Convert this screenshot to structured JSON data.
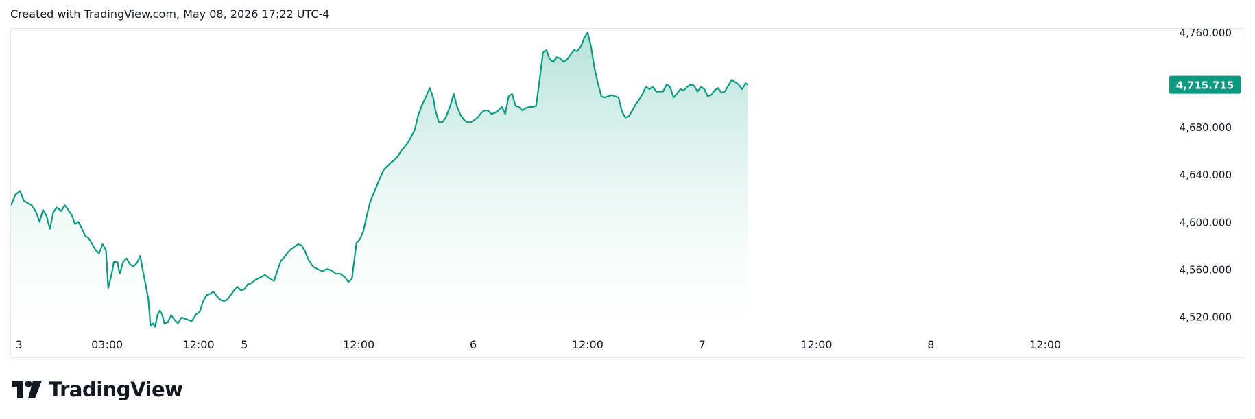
{
  "header": {
    "created_text": "Created with TradingView.com, May 08, 2026 17:22 UTC-4"
  },
  "brand": {
    "name": "TradingView"
  },
  "colors": {
    "line": "#089981",
    "fill_top": "#bfe6dd",
    "badge_bg": "#089981",
    "badge_text": "#ffffff",
    "axis_text": "#131722"
  },
  "chart_data": {
    "type": "area",
    "title": "",
    "xlabel": "",
    "ylabel": "",
    "ylim": [
      4508,
      4763
    ],
    "yticks": [
      4520,
      4560,
      4600,
      4640,
      4680,
      4720,
      4760
    ],
    "ytick_labels": [
      "4,520.000",
      "4,560.000",
      "4,600.000",
      "4,640.000",
      "4,680.000",
      "4,720.000",
      "4,760.000"
    ],
    "x_unit": "trading days (4 May 2026 = 0)",
    "xlim": [
      -1.02,
      4.03
    ],
    "xticks": [
      {
        "x": -1.0,
        "label": "3"
      },
      {
        "x": -0.6,
        "label": "03:00"
      },
      {
        "x": -0.2,
        "label": "12:00"
      },
      {
        "x": 0.0,
        "label": "5"
      },
      {
        "x": 0.5,
        "label": "12:00"
      },
      {
        "x": 1.0,
        "label": "6"
      },
      {
        "x": 1.5,
        "label": "12:00"
      },
      {
        "x": 2.0,
        "label": "7"
      },
      {
        "x": 2.5,
        "label": "12:00"
      },
      {
        "x": 3.0,
        "label": "8"
      },
      {
        "x": 3.5,
        "label": "12:00"
      }
    ],
    "last_value_label": "4,715.715",
    "grid": false,
    "series": [
      {
        "points": [
          [
            -1.02,
            4614
          ],
          [
            -1.0,
            4623
          ],
          [
            -0.98,
            4626
          ],
          [
            -0.965,
            4618
          ],
          [
            -0.95,
            4616
          ],
          [
            -0.93,
            4614
          ],
          [
            -0.91,
            4608
          ],
          [
            -0.895,
            4600
          ],
          [
            -0.88,
            4610
          ],
          [
            -0.865,
            4605
          ],
          [
            -0.85,
            4594
          ],
          [
            -0.835,
            4608
          ],
          [
            -0.82,
            4612
          ],
          [
            -0.8,
            4609
          ],
          [
            -0.785,
            4614
          ],
          [
            -0.77,
            4610
          ],
          [
            -0.755,
            4606
          ],
          [
            -0.74,
            4598
          ],
          [
            -0.725,
            4600
          ],
          [
            -0.71,
            4594
          ],
          [
            -0.695,
            4588
          ],
          [
            -0.68,
            4586
          ],
          [
            -0.665,
            4581
          ],
          [
            -0.65,
            4576
          ],
          [
            -0.635,
            4573
          ],
          [
            -0.62,
            4581
          ],
          [
            -0.605,
            4576
          ],
          [
            -0.595,
            4544
          ],
          [
            -0.58,
            4556
          ],
          [
            -0.57,
            4566
          ],
          [
            -0.555,
            4566
          ],
          [
            -0.545,
            4556
          ],
          [
            -0.53,
            4566
          ],
          [
            -0.515,
            4569
          ],
          [
            -0.5,
            4564
          ],
          [
            -0.485,
            4562
          ],
          [
            -0.47,
            4565
          ],
          [
            -0.455,
            4571
          ],
          [
            -0.445,
            4560
          ],
          [
            -0.43,
            4545
          ],
          [
            -0.42,
            4535
          ],
          [
            -0.41,
            4512
          ],
          [
            -0.4,
            4514
          ],
          [
            -0.39,
            4511
          ],
          [
            -0.38,
            4521
          ],
          [
            -0.37,
            4525
          ],
          [
            -0.36,
            4522
          ],
          [
            -0.35,
            4514
          ],
          [
            -0.335,
            4515
          ],
          [
            -0.32,
            4521
          ],
          [
            -0.305,
            4517
          ],
          [
            -0.29,
            4514
          ],
          [
            -0.275,
            4519
          ],
          [
            -0.26,
            4518
          ],
          [
            -0.245,
            4517
          ],
          [
            -0.23,
            4516
          ],
          [
            -0.21,
            4522
          ],
          [
            -0.195,
            4524
          ],
          [
            -0.18,
            4533
          ],
          [
            -0.165,
            4538
          ],
          [
            -0.15,
            4539
          ],
          [
            -0.135,
            4541
          ],
          [
            -0.12,
            4537
          ],
          [
            -0.105,
            4534
          ],
          [
            -0.09,
            4533
          ],
          [
            -0.075,
            4534
          ],
          [
            -0.06,
            4538
          ],
          [
            -0.045,
            4542
          ],
          [
            -0.03,
            4545
          ],
          [
            -0.015,
            4542
          ],
          [
            0.0,
            4543
          ],
          [
            0.015,
            4547
          ],
          [
            0.03,
            4548
          ],
          [
            0.05,
            4551
          ],
          [
            0.07,
            4553
          ],
          [
            0.09,
            4555
          ],
          [
            0.11,
            4552
          ],
          [
            0.13,
            4550
          ],
          [
            0.145,
            4559
          ],
          [
            0.16,
            4567
          ],
          [
            0.175,
            4570
          ],
          [
            0.19,
            4574
          ],
          [
            0.205,
            4577
          ],
          [
            0.22,
            4579
          ],
          [
            0.235,
            4581
          ],
          [
            0.25,
            4580
          ],
          [
            0.265,
            4575
          ],
          [
            0.28,
            4568
          ],
          [
            0.3,
            4562
          ],
          [
            0.32,
            4560
          ],
          [
            0.34,
            4558
          ],
          [
            0.36,
            4560
          ],
          [
            0.38,
            4559
          ],
          [
            0.4,
            4556
          ],
          [
            0.42,
            4556
          ],
          [
            0.44,
            4553
          ],
          [
            0.455,
            4549
          ],
          [
            0.47,
            4552
          ],
          [
            0.49,
            4582
          ],
          [
            0.505,
            4585
          ],
          [
            0.52,
            4592
          ],
          [
            0.535,
            4605
          ],
          [
            0.55,
            4617
          ],
          [
            0.565,
            4624
          ],
          [
            0.58,
            4631
          ],
          [
            0.595,
            4638
          ],
          [
            0.61,
            4644
          ],
          [
            0.625,
            4647
          ],
          [
            0.64,
            4650
          ],
          [
            0.655,
            4652
          ],
          [
            0.67,
            4655
          ],
          [
            0.685,
            4660
          ],
          [
            0.7,
            4663
          ],
          [
            0.715,
            4667
          ],
          [
            0.73,
            4672
          ],
          [
            0.745,
            4678
          ],
          [
            0.76,
            4690
          ],
          [
            0.775,
            4698
          ],
          [
            0.79,
            4704
          ],
          [
            0.81,
            4713
          ],
          [
            0.825,
            4705
          ],
          [
            0.835,
            4694
          ],
          [
            0.85,
            4684
          ],
          [
            0.865,
            4684
          ],
          [
            0.88,
            4688
          ],
          [
            0.9,
            4698
          ],
          [
            0.915,
            4708
          ],
          [
            0.93,
            4697
          ],
          [
            0.945,
            4690
          ],
          [
            0.96,
            4686
          ],
          [
            0.975,
            4684
          ],
          [
            0.99,
            4684
          ],
          [
            1.005,
            4686
          ],
          [
            1.02,
            4688
          ],
          [
            1.035,
            4692
          ],
          [
            1.05,
            4694
          ],
          [
            1.065,
            4694
          ],
          [
            1.08,
            4691
          ],
          [
            1.095,
            4692
          ],
          [
            1.11,
            4694
          ],
          [
            1.125,
            4697
          ],
          [
            1.14,
            4691
          ],
          [
            1.155,
            4706
          ],
          [
            1.17,
            4708
          ],
          [
            1.185,
            4698
          ],
          [
            1.2,
            4697
          ],
          [
            1.215,
            4694
          ],
          [
            1.23,
            4696
          ],
          [
            1.245,
            4697
          ],
          [
            1.26,
            4697
          ],
          [
            1.275,
            4698
          ],
          [
            1.29,
            4720
          ],
          [
            1.305,
            4743
          ],
          [
            1.32,
            4745
          ],
          [
            1.335,
            4737
          ],
          [
            1.35,
            4735
          ],
          [
            1.365,
            4739
          ],
          [
            1.38,
            4738
          ],
          [
            1.395,
            4735
          ],
          [
            1.41,
            4737
          ],
          [
            1.425,
            4741
          ],
          [
            1.44,
            4745
          ],
          [
            1.455,
            4744
          ],
          [
            1.47,
            4748
          ],
          [
            1.485,
            4755
          ],
          [
            1.5,
            4760
          ],
          [
            1.515,
            4748
          ],
          [
            1.53,
            4730
          ],
          [
            1.545,
            4717
          ],
          [
            1.56,
            4706
          ],
          [
            1.575,
            4705
          ],
          [
            1.59,
            4706
          ],
          [
            1.605,
            4707
          ],
          [
            1.62,
            4706
          ],
          [
            1.635,
            4705
          ],
          [
            1.65,
            4693
          ],
          [
            1.665,
            4688
          ],
          [
            1.68,
            4689
          ],
          [
            1.695,
            4694
          ],
          [
            1.71,
            4699
          ],
          [
            1.725,
            4703
          ],
          [
            1.74,
            4708
          ],
          [
            1.755,
            4714
          ],
          [
            1.77,
            4712
          ],
          [
            1.785,
            4714
          ],
          [
            1.8,
            4710
          ],
          [
            1.815,
            4710
          ],
          [
            1.83,
            4710
          ],
          [
            1.845,
            4716
          ],
          [
            1.86,
            4714
          ],
          [
            1.875,
            4705
          ],
          [
            1.89,
            4708
          ],
          [
            1.905,
            4712
          ],
          [
            1.92,
            4711
          ],
          [
            1.935,
            4714
          ],
          [
            1.95,
            4716
          ],
          [
            1.965,
            4715
          ],
          [
            1.98,
            4710
          ],
          [
            1.995,
            4714
          ],
          [
            2.01,
            4712
          ],
          [
            2.025,
            4706
          ],
          [
            2.04,
            4707
          ],
          [
            2.055,
            4711
          ],
          [
            2.07,
            4713
          ],
          [
            2.085,
            4709
          ],
          [
            2.1,
            4710
          ],
          [
            2.115,
            4715
          ],
          [
            2.13,
            4720
          ],
          [
            2.145,
            4718
          ],
          [
            2.16,
            4716
          ],
          [
            2.175,
            4712
          ],
          [
            2.19,
            4717
          ],
          [
            2.2,
            4715.715
          ]
        ]
      }
    ]
  }
}
